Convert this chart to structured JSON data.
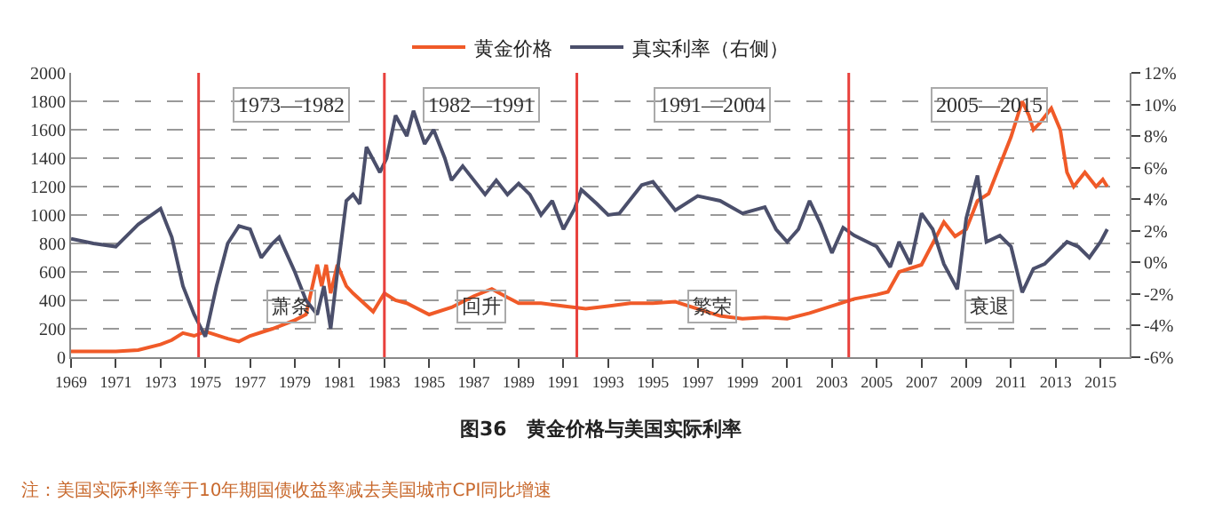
{
  "chart_data": {
    "type": "line",
    "title": "图36　黄金价格与美国实际利率",
    "xlim": [
      1969,
      2016.3
    ],
    "xticks": [
      1969,
      1971,
      1973,
      1975,
      1977,
      1979,
      1981,
      1983,
      1985,
      1987,
      1989,
      1991,
      1993,
      1995,
      1997,
      1999,
      2001,
      2003,
      2005,
      2007,
      2009,
      2011,
      2013,
      2015
    ],
    "ylim": [
      0,
      2000
    ],
    "yticks": [
      0,
      200,
      400,
      600,
      800,
      1000,
      1200,
      1400,
      1600,
      1800,
      2000
    ],
    "y2lim": [
      -6,
      12
    ],
    "y2ticks": [
      {
        "value": -6,
        "label": "-6%"
      },
      {
        "value": -4,
        "label": "-4%"
      },
      {
        "value": -2,
        "label": "-2%"
      },
      {
        "value": 0,
        "label": "0%"
      },
      {
        "value": 2,
        "label": "2%"
      },
      {
        "value": 4,
        "label": "4%"
      },
      {
        "value": 6,
        "label": "6%"
      },
      {
        "value": 8,
        "label": "8%"
      },
      {
        "value": 10,
        "label": "10%"
      },
      {
        "value": 12,
        "label": "12%"
      }
    ],
    "grid": "y",
    "legend": "top",
    "line_style": "solid",
    "marker": "none",
    "series": [
      {
        "name": "黄金价格",
        "color": "#f05a28",
        "x": [
          1969,
          1970,
          1971,
          1972,
          1973,
          1973.5,
          1974,
          1974.5,
          1975,
          1976,
          1976.5,
          1977,
          1978,
          1979,
          1979.5,
          1980,
          1980.2,
          1980.4,
          1980.6,
          1980.9,
          1981.3,
          1981.6,
          1982.5,
          1983,
          1983.5,
          1984,
          1985,
          1986,
          1987,
          1987.8,
          1988.5,
          1989,
          1990,
          1991,
          1992,
          1993,
          1994,
          1995,
          1996,
          1997,
          1998,
          1999,
          2000,
          2001,
          2002,
          2003,
          2004,
          2005,
          2005.5,
          2006,
          2007,
          2007.5,
          2008,
          2008.5,
          2009,
          2009.5,
          2010,
          2010.5,
          2011,
          2011.5,
          2011.8,
          2012,
          2012.3,
          2012.8,
          2013.2,
          2013.5,
          2013.8,
          2014.3,
          2014.8,
          2015.1,
          2015.3
        ],
        "values": [
          40,
          40,
          40,
          50,
          90,
          120,
          170,
          150,
          180,
          130,
          110,
          150,
          200,
          260,
          300,
          650,
          500,
          650,
          450,
          650,
          500,
          450,
          320,
          450,
          400,
          380,
          300,
          350,
          430,
          480,
          420,
          380,
          380,
          360,
          340,
          360,
          380,
          380,
          390,
          340,
          290,
          270,
          280,
          270,
          310,
          360,
          410,
          440,
          460,
          600,
          650,
          800,
          950,
          850,
          900,
          1100,
          1150,
          1350,
          1550,
          1800,
          1700,
          1600,
          1650,
          1750,
          1600,
          1300,
          1200,
          1300,
          1200,
          1250,
          1200
        ]
      },
      {
        "name": "真实利率（右侧）",
        "color": "#4b4f6b",
        "axis": "y2",
        "x": [
          1969,
          1970,
          1971,
          1972,
          1973,
          1973.5,
          1974,
          1974.5,
          1975,
          1975.5,
          1976,
          1976.5,
          1977,
          1977.5,
          1978,
          1978.3,
          1979,
          1979.5,
          1980,
          1980.3,
          1980.6,
          1980.9,
          1981.3,
          1981.6,
          1981.9,
          1982.2,
          1982.8,
          1983.1,
          1983.5,
          1984,
          1984.3,
          1984.8,
          1985.2,
          1985.7,
          1986,
          1986.5,
          1987,
          1987.5,
          1988,
          1988.5,
          1989,
          1989.5,
          1990,
          1990.5,
          1991,
          1991.5,
          1991.8,
          1992.5,
          1993,
          1993.5,
          1994.5,
          1995,
          1996,
          1997,
          1998,
          1999,
          2000,
          2000.5,
          2001,
          2001.5,
          2002,
          2002.5,
          2003,
          2003.5,
          2004,
          2005,
          2005.6,
          2006,
          2006.5,
          2007,
          2007.5,
          2008,
          2008.6,
          2009,
          2009.5,
          2009.9,
          2010.5,
          2011,
          2011.5,
          2012,
          2012.5,
          2013,
          2013.5,
          2014,
          2014.5,
          2015,
          2015.3
        ],
        "values": [
          1.5,
          1.2,
          1.0,
          2.4,
          3.4,
          1.6,
          -1.5,
          -3.3,
          -4.7,
          -1.5,
          1.2,
          2.3,
          2.1,
          0.3,
          1.2,
          1.6,
          -0.6,
          -2.4,
          -3.3,
          -1.5,
          -4.2,
          -0.6,
          3.9,
          4.3,
          3.7,
          7.3,
          5.7,
          6.6,
          9.3,
          8.0,
          9.6,
          7.5,
          8.4,
          6.6,
          5.2,
          6.1,
          5.2,
          4.3,
          5.2,
          4.3,
          5.0,
          4.3,
          3.0,
          3.9,
          2.1,
          3.4,
          4.6,
          3.7,
          3.0,
          3.1,
          4.9,
          5.1,
          3.3,
          4.2,
          3.9,
          3.1,
          3.5,
          2.1,
          1.3,
          2.1,
          3.9,
          2.4,
          0.6,
          2.2,
          1.7,
          1.0,
          -0.3,
          1.3,
          -0.1,
          3.1,
          2.1,
          -0.1,
          -1.7,
          2.8,
          5.5,
          1.3,
          1.7,
          1.0,
          -1.9,
          -0.4,
          -0.1,
          0.6,
          1.3,
          1.0,
          0.3,
          1.3,
          2.1
        ]
      }
    ],
    "ref_lines": [
      {
        "axis": "x",
        "value": 1974.7,
        "color": "#e8403c"
      },
      {
        "axis": "x",
        "value": 1983.0,
        "color": "#e8403c"
      },
      {
        "axis": "x",
        "value": 1991.6,
        "color": "#e8403c"
      },
      {
        "axis": "x",
        "value": 2003.75,
        "color": "#e8403c"
      }
    ],
    "annotations": [
      "1973—1982",
      "1982—1991",
      "1991—2004",
      "2005—2015",
      "萧条",
      "回升",
      "繁荣",
      "衰退",
      "注：美国实际利率等于10年期国债收益率减去美国城市CPI同比增速"
    ]
  }
}
